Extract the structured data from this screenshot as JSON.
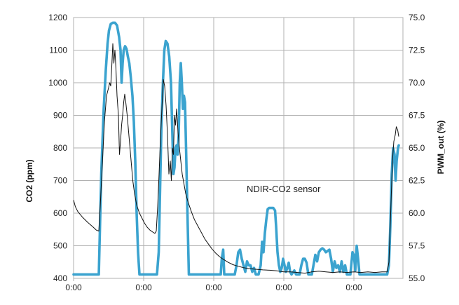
{
  "chart_data": {
    "type": "line",
    "title": "",
    "xlabel": "",
    "ylabel": "CO2 (ppm)",
    "y2label": "PWM_out (%)",
    "annotation": "NDIR-CO2 sensor",
    "grid": true,
    "legend": "none",
    "xlim": [
      0,
      940
    ],
    "ylim": [
      400,
      1200
    ],
    "y2lim": [
      55.0,
      75.0
    ],
    "x_ticks": [
      0,
      200,
      400,
      600,
      800
    ],
    "x_tick_labels": [
      "0:00",
      "0:00",
      "0:00",
      "0:00",
      "0:00"
    ],
    "y_ticks": [
      400,
      500,
      600,
      700,
      800,
      900,
      1000,
      1100,
      1200
    ],
    "y_tick_labels": [
      "400",
      "500",
      "600",
      "700",
      "800",
      "900",
      "1000",
      "1100",
      "1200"
    ],
    "y2_ticks": [
      55,
      57.5,
      60,
      62.5,
      65,
      67.5,
      70,
      72.5,
      75
    ],
    "y2_tick_labels": [
      "55.0",
      "57.5",
      "60.0",
      "62.5",
      "65.0",
      "67.5",
      "70.0",
      "72.5",
      "75.0"
    ],
    "colors": {
      "co2": "#111111",
      "pwm": "#3ba3cf",
      "grid": "#b0b0b0"
    },
    "series": [
      {
        "axis": "left",
        "values": [
          [
            0,
            640
          ],
          [
            5,
            620
          ],
          [
            12,
            605
          ],
          [
            25,
            588
          ],
          [
            40,
            572
          ],
          [
            55,
            558
          ],
          [
            65,
            548
          ],
          [
            72,
            545
          ],
          [
            76,
            620
          ],
          [
            82,
            750
          ],
          [
            88,
            880
          ],
          [
            94,
            960
          ],
          [
            100,
            985
          ],
          [
            103,
            1000
          ],
          [
            106,
            990
          ],
          [
            109,
            1050
          ],
          [
            112,
            1120
          ],
          [
            115,
            1060
          ],
          [
            118,
            1100
          ],
          [
            121,
            1040
          ],
          [
            124,
            960
          ],
          [
            128,
            900
          ],
          [
            131,
            780
          ],
          [
            134,
            820
          ],
          [
            137,
            870
          ],
          [
            140,
            900
          ],
          [
            143,
            940
          ],
          [
            146,
            965
          ],
          [
            149,
            940
          ],
          [
            153,
            900
          ],
          [
            157,
            850
          ],
          [
            161,
            800
          ],
          [
            165,
            750
          ],
          [
            169,
            700
          ],
          [
            174,
            660
          ],
          [
            180,
            625
          ],
          [
            188,
            600
          ],
          [
            195,
            585
          ],
          [
            202,
            570
          ],
          [
            210,
            557
          ],
          [
            218,
            548
          ],
          [
            226,
            542
          ],
          [
            232,
            538
          ],
          [
            236,
            545
          ],
          [
            240,
            620
          ],
          [
            244,
            720
          ],
          [
            248,
            830
          ],
          [
            252,
            920
          ],
          [
            256,
            1010
          ],
          [
            260,
            990
          ],
          [
            264,
            930
          ],
          [
            268,
            840
          ],
          [
            272,
            720
          ],
          [
            276,
            760
          ],
          [
            279,
            700
          ],
          [
            282,
            800
          ],
          [
            285,
            780
          ],
          [
            288,
            900
          ],
          [
            291,
            870
          ],
          [
            294,
            920
          ],
          [
            298,
            850
          ],
          [
            302,
            800
          ],
          [
            306,
            760
          ],
          [
            310,
            720
          ],
          [
            315,
            690
          ],
          [
            320,
            660
          ],
          [
            328,
            630
          ],
          [
            336,
            605
          ],
          [
            345,
            580
          ],
          [
            355,
            560
          ],
          [
            365,
            540
          ],
          [
            375,
            520
          ],
          [
            385,
            505
          ],
          [
            395,
            490
          ],
          [
            405,
            478
          ],
          [
            415,
            468
          ],
          [
            425,
            460
          ],
          [
            440,
            450
          ],
          [
            455,
            442
          ],
          [
            470,
            437
          ],
          [
            485,
            433
          ],
          [
            500,
            430
          ],
          [
            520,
            428
          ],
          [
            540,
            426
          ],
          [
            560,
            425
          ],
          [
            580,
            423
          ],
          [
            600,
            420
          ],
          [
            620,
            420
          ],
          [
            640,
            418
          ],
          [
            660,
            416
          ],
          [
            680,
            420
          ],
          [
            700,
            422
          ],
          [
            720,
            420
          ],
          [
            740,
            418
          ],
          [
            760,
            420
          ],
          [
            780,
            418
          ],
          [
            800,
            420
          ],
          [
            820,
            418
          ],
          [
            840,
            420
          ],
          [
            860,
            418
          ],
          [
            880,
            420
          ],
          [
            895,
            420
          ],
          [
            900,
            450
          ],
          [
            905,
            600
          ],
          [
            910,
            760
          ],
          [
            914,
            820
          ],
          [
            918,
            840
          ],
          [
            921,
            865
          ],
          [
            925,
            855
          ],
          [
            928,
            835
          ]
        ]
      },
      {
        "axis": "right",
        "values": [
          [
            0,
            55.3
          ],
          [
            68,
            55.3
          ],
          [
            72,
            55.3
          ],
          [
            79,
            63.0
          ],
          [
            86,
            68.0
          ],
          [
            92,
            71.0
          ],
          [
            97,
            73.0
          ],
          [
            101,
            74.0
          ],
          [
            106,
            74.5
          ],
          [
            112,
            74.6
          ],
          [
            118,
            74.6
          ],
          [
            124,
            74.4
          ],
          [
            130,
            73.5
          ],
          [
            134,
            72.5
          ],
          [
            137,
            70.0
          ],
          [
            140,
            71.5
          ],
          [
            143,
            72.5
          ],
          [
            147,
            72.8
          ],
          [
            151,
            72.6
          ],
          [
            155,
            72.0
          ],
          [
            159,
            71.5
          ],
          [
            163,
            70.5
          ],
          [
            168,
            69.0
          ],
          [
            172,
            67.0
          ],
          [
            176,
            64.0
          ],
          [
            180,
            60.0
          ],
          [
            184,
            57.0
          ],
          [
            188,
            55.3
          ],
          [
            238,
            55.3
          ],
          [
            243,
            57.0
          ],
          [
            247,
            62.0
          ],
          [
            251,
            67.0
          ],
          [
            255,
            70.0
          ],
          [
            259,
            72.5
          ],
          [
            263,
            73.2
          ],
          [
            268,
            73.0
          ],
          [
            273,
            72.0
          ],
          [
            278,
            70.0
          ],
          [
            282,
            66.0
          ],
          [
            285,
            63.0
          ],
          [
            288,
            63.5
          ],
          [
            291,
            65.0
          ],
          [
            294,
            65.2
          ],
          [
            297,
            64.5
          ],
          [
            300,
            66.0
          ],
          [
            303,
            70.0
          ],
          [
            306,
            71.5
          ],
          [
            309,
            70.0
          ],
          [
            312,
            68.0
          ],
          [
            315,
            69.0
          ],
          [
            318,
            68.5
          ],
          [
            321,
            65.0
          ],
          [
            325,
            60.0
          ],
          [
            329,
            55.3
          ],
          [
            345,
            55.3
          ],
          [
            420,
            55.3
          ],
          [
            423,
            56.5
          ],
          [
            427,
            57.2
          ],
          [
            430,
            55.3
          ],
          [
            460,
            55.3
          ],
          [
            465,
            56.0
          ],
          [
            470,
            57.0
          ],
          [
            475,
            57.2
          ],
          [
            480,
            56.5
          ],
          [
            485,
            56.0
          ],
          [
            490,
            55.5
          ],
          [
            495,
            56.3
          ],
          [
            500,
            56.0
          ],
          [
            505,
            56.0
          ],
          [
            510,
            55.5
          ],
          [
            515,
            55.8
          ],
          [
            520,
            55.3
          ],
          [
            528,
            55.3
          ],
          [
            534,
            56.0
          ],
          [
            538,
            57.8
          ],
          [
            542,
            57.0
          ],
          [
            546,
            58.5
          ],
          [
            550,
            59.5
          ],
          [
            554,
            60.3
          ],
          [
            558,
            60.4
          ],
          [
            564,
            60.4
          ],
          [
            570,
            60.4
          ],
          [
            575,
            60.2
          ],
          [
            578,
            59.0
          ],
          [
            582,
            57.0
          ],
          [
            586,
            56.0
          ],
          [
            590,
            55.5
          ],
          [
            594,
            55.8
          ],
          [
            598,
            56.5
          ],
          [
            602,
            56.0
          ],
          [
            606,
            55.5
          ],
          [
            610,
            55.8
          ],
          [
            614,
            56.2
          ],
          [
            618,
            55.5
          ],
          [
            622,
            55.3
          ],
          [
            630,
            55.6
          ],
          [
            635,
            55.3
          ],
          [
            645,
            55.3
          ],
          [
            650,
            56.0
          ],
          [
            655,
            56.5
          ],
          [
            660,
            56.5
          ],
          [
            665,
            56.2
          ],
          [
            670,
            55.3
          ],
          [
            680,
            55.3
          ],
          [
            690,
            56.8
          ],
          [
            695,
            56.3
          ],
          [
            700,
            57.0
          ],
          [
            705,
            57.2
          ],
          [
            710,
            57.3
          ],
          [
            715,
            57.2
          ],
          [
            720,
            57.0
          ],
          [
            725,
            57.1
          ],
          [
            730,
            57.2
          ],
          [
            735,
            56.5
          ],
          [
            740,
            55.5
          ],
          [
            745,
            56.3
          ],
          [
            750,
            55.8
          ],
          [
            755,
            56.0
          ],
          [
            760,
            55.5
          ],
          [
            765,
            56.3
          ],
          [
            770,
            55.5
          ],
          [
            775,
            56.0
          ],
          [
            780,
            55.3
          ],
          [
            790,
            55.3
          ],
          [
            796,
            57.0
          ],
          [
            800,
            56.8
          ],
          [
            804,
            55.6
          ],
          [
            808,
            57.5
          ],
          [
            812,
            56.5
          ],
          [
            816,
            55.3
          ],
          [
            820,
            55.3
          ],
          [
            860,
            55.3
          ],
          [
            885,
            55.3
          ],
          [
            895,
            55.3
          ],
          [
            900,
            56.0
          ],
          [
            904,
            59.0
          ],
          [
            908,
            63.0
          ],
          [
            912,
            65.0
          ],
          [
            916,
            64.5
          ],
          [
            919,
            62.5
          ],
          [
            922,
            64.0
          ],
          [
            926,
            65.0
          ],
          [
            928,
            65.2
          ]
        ]
      }
    ]
  }
}
